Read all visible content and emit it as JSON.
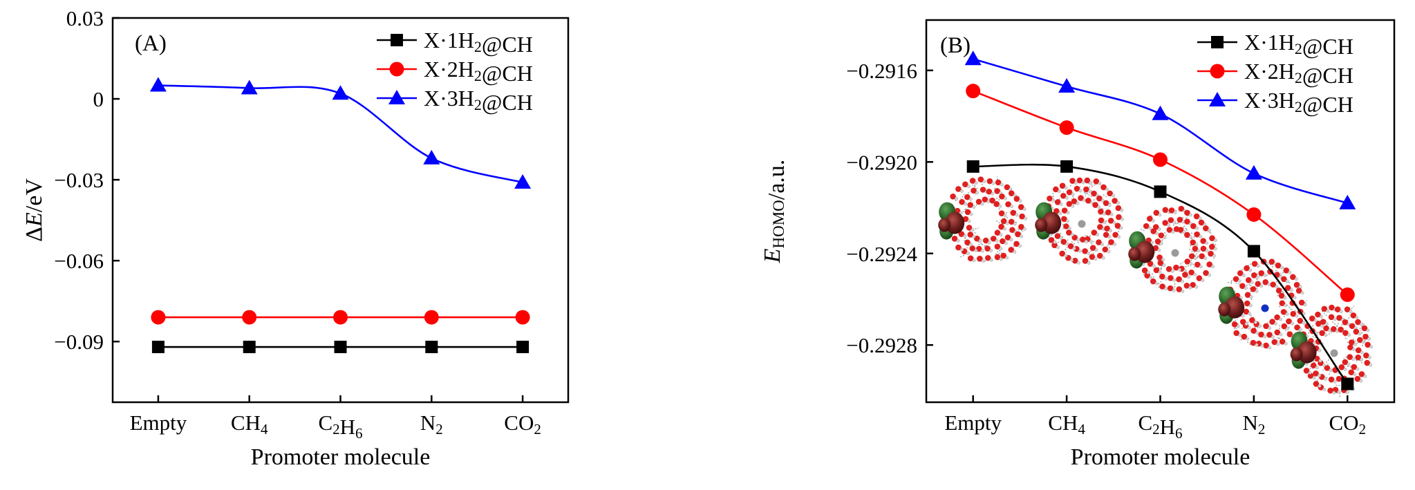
{
  "chart_data": [
    {
      "type": "line",
      "panel_label": "(A)",
      "xlabel": "Promoter molecule",
      "ylabel": "ΔE/eV",
      "ylabel_parts": [
        {
          "t": "Δ",
          "i": false
        },
        {
          "t": "E",
          "i": true
        },
        {
          "t": "/eV",
          "i": false
        }
      ],
      "categories": [
        "Empty",
        "CH₄",
        "C₂H₆",
        "N₂",
        "CO₂"
      ],
      "ylim": [
        -0.1125,
        0.03
      ],
      "yticks": [
        0.03,
        0,
        -0.03,
        -0.06,
        -0.09
      ],
      "ytick_labels": [
        "0.03",
        "0",
        "−0.03",
        "−0.06",
        "−0.09"
      ],
      "legend_position": "top-right",
      "grid": false,
      "series": [
        {
          "name": "X·1H₂@CH",
          "color": "#000000",
          "marker": "square",
          "smooth": false,
          "values": [
            -0.092,
            -0.092,
            -0.092,
            -0.092,
            -0.092
          ]
        },
        {
          "name": "X·2H₂@CH",
          "color": "#ff0000",
          "marker": "circle",
          "smooth": false,
          "values": [
            -0.081,
            -0.081,
            -0.081,
            -0.081,
            -0.081
          ]
        },
        {
          "name": "X·3H₂@CH",
          "color": "#0000ff",
          "marker": "triangle",
          "smooth": true,
          "values": [
            0.005,
            0.004,
            0.002,
            -0.022,
            -0.031
          ]
        }
      ]
    },
    {
      "type": "line",
      "panel_label": "(B)",
      "xlabel": "Promoter molecule",
      "ylabel": "E_HOMO/a.u.",
      "ylabel_parts": [
        {
          "t": "E",
          "i": true
        },
        {
          "t": "HOMO",
          "i": false,
          "sub": true
        },
        {
          "t": "/a.u.",
          "i": false
        }
      ],
      "categories": [
        "Empty",
        "CH₄",
        "C₂H₆",
        "N₂",
        "CO₂"
      ],
      "ylim": [
        -0.29305,
        -0.29138
      ],
      "yticks": [
        -0.2916,
        -0.292,
        -0.2924,
        -0.2928
      ],
      "ytick_labels": [
        "−0.2916",
        "−0.2920",
        "−0.2924",
        "−0.2928"
      ],
      "legend_position": "top-right",
      "grid": false,
      "series": [
        {
          "name": "X·1H₂@CH",
          "color": "#000000",
          "marker": "square",
          "smooth": true,
          "values": [
            -0.29202,
            -0.29202,
            -0.29213,
            -0.29239,
            -0.29297
          ]
        },
        {
          "name": "X·2H₂@CH",
          "color": "#ff0000",
          "marker": "circle",
          "smooth": true,
          "values": [
            -0.29169,
            -0.29185,
            -0.29199,
            -0.29223,
            -0.29258
          ]
        },
        {
          "name": "X·3H₂@CH",
          "color": "#0000ff",
          "marker": "triangle",
          "smooth": true,
          "values": [
            -0.29155,
            -0.29167,
            -0.29179,
            -0.29205,
            -0.29218
          ]
        }
      ]
    }
  ]
}
